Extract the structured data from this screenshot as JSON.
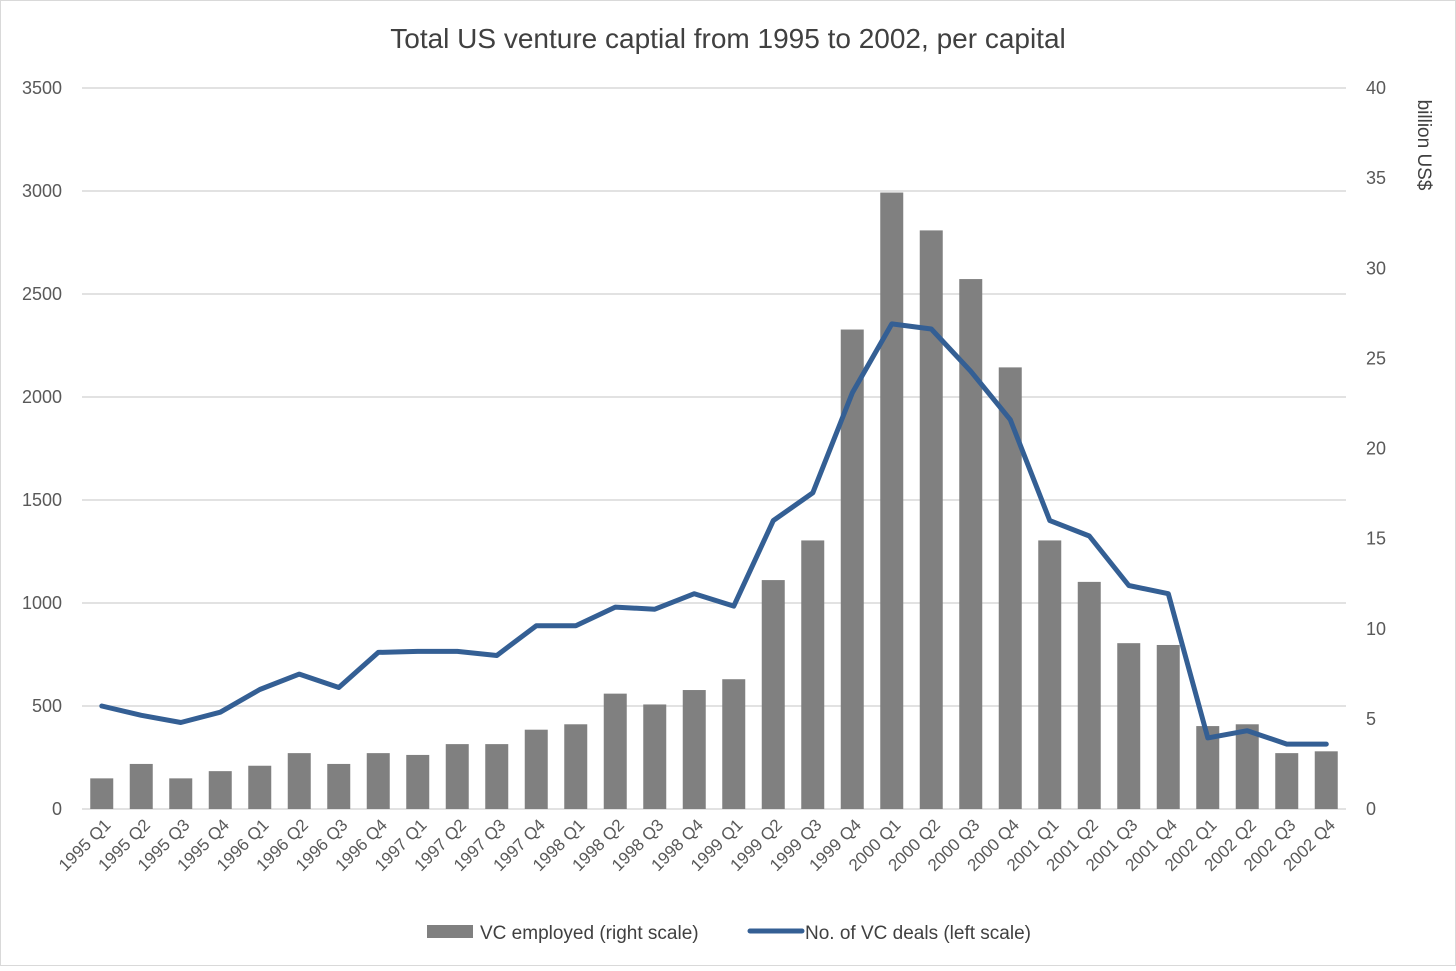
{
  "chart_data": {
    "type": "bar+line",
    "title": "Total US venture captial from 1995 to 2002, per capital",
    "categories": [
      "1995 Q1",
      "1995 Q2",
      "1995 Q3",
      "1995 Q4",
      "1996 Q1",
      "1996 Q2",
      "1996 Q3",
      "1996 Q4",
      "1997 Q1",
      "1997 Q2",
      "1997 Q3",
      "1997 Q4",
      "1998 Q1",
      "1998 Q2",
      "1998 Q3",
      "1998 Q4",
      "1999 Q1",
      "1999 Q2",
      "1999 Q3",
      "1999 Q4",
      "2000 Q1",
      "2000 Q2",
      "2000 Q3",
      "2000 Q4",
      "2001 Q1",
      "2001 Q2",
      "2001 Q3",
      "2001 Q4",
      "2002 Q1",
      "2002 Q2",
      "2002 Q3",
      "2002 Q4"
    ],
    "series": [
      {
        "name": "VC employed (right scale)",
        "kind": "bar",
        "axis": "right",
        "color": "#808080",
        "values": [
          1.7,
          2.5,
          1.7,
          2.1,
          2.4,
          3.1,
          2.5,
          3.1,
          3.0,
          3.6,
          3.6,
          4.4,
          4.7,
          6.4,
          5.8,
          6.6,
          7.2,
          12.7,
          14.9,
          26.6,
          34.2,
          32.1,
          29.4,
          24.5,
          14.9,
          12.6,
          9.2,
          9.1,
          4.6,
          4.7,
          3.1,
          3.2
        ]
      },
      {
        "name": "No. of VC deals (left scale)",
        "kind": "line",
        "axis": "left",
        "color": "#345f94",
        "values": [
          500,
          455,
          420,
          470,
          580,
          655,
          590,
          760,
          765,
          765,
          745,
          890,
          890,
          980,
          970,
          1045,
          985,
          1400,
          1535,
          2020,
          2355,
          2330,
          2125,
          1890,
          1400,
          1325,
          1085,
          1045,
          345,
          380,
          315,
          315
        ]
      }
    ],
    "left_axis": {
      "ylim": [
        0,
        3500
      ],
      "ticks": [
        0,
        500,
        1000,
        1500,
        2000,
        2500,
        3000,
        3500
      ],
      "label": ""
    },
    "right_axis": {
      "ylim": [
        0,
        40
      ],
      "ticks": [
        0,
        5,
        10,
        15,
        20,
        25,
        30,
        35,
        40
      ],
      "label": "billion US$"
    },
    "grid": true,
    "legend_position": "bottom"
  }
}
